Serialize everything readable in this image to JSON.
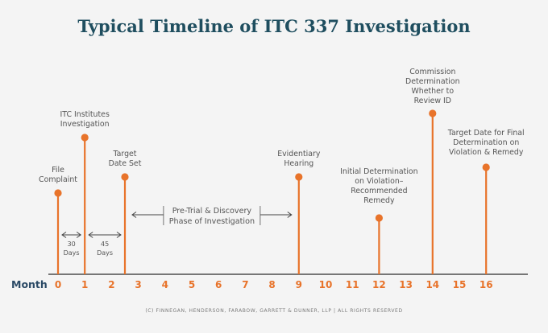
{
  "title": "Typical Timeline of ITC 337 Investigation",
  "footer": "(C) FINNEGAN, HENDERSON, FARABOW, GARRETT & DUNNER, LLP | ALL RIGHTS RESERVED",
  "axis": {
    "label": "Month",
    "ticks": [
      "0",
      "1",
      "2",
      "3",
      "4",
      "5",
      "6",
      "7",
      "8",
      "9",
      "10",
      "11",
      "12",
      "13",
      "14",
      "15",
      "16"
    ]
  },
  "colors": {
    "accent": "#e8732a",
    "title": "#1f4e5f",
    "month": "#2b4a66",
    "text": "#555555"
  },
  "events": [
    {
      "id": "file-complaint",
      "month": 0,
      "label": [
        "File",
        "Complaint"
      ]
    },
    {
      "id": "itc-institutes",
      "month": 1,
      "label": [
        "ITC Institutes",
        "Investigation"
      ]
    },
    {
      "id": "target-date-set",
      "month": 2.5,
      "label": [
        "Target",
        "Date Set"
      ]
    },
    {
      "id": "evidentiary-hearing",
      "month": 9,
      "label": [
        "Evidentiary",
        "Hearing"
      ]
    },
    {
      "id": "initial-determination",
      "month": 12,
      "label": [
        "Initial Determination",
        "on Violation–",
        "Recommended",
        "Remedy"
      ]
    },
    {
      "id": "commission-determination",
      "month": 14,
      "label": [
        "Commission",
        "Determination",
        "Whether to",
        "Review ID"
      ]
    },
    {
      "id": "target-date-final",
      "month": 16,
      "label": [
        "Target Date for Final",
        "Determination on",
        "Violation & Remedy"
      ]
    }
  ],
  "spans": [
    {
      "id": "span-30-days",
      "from": 0,
      "to": 1,
      "label": [
        "30",
        "Days"
      ]
    },
    {
      "id": "span-45-days",
      "from": 1,
      "to": 2.5,
      "label": [
        "45",
        "Days"
      ]
    }
  ],
  "phase": {
    "from": 2.5,
    "to": 9,
    "label": [
      "Pre-Trial & Discovery",
      "Phase of Investigation"
    ]
  }
}
